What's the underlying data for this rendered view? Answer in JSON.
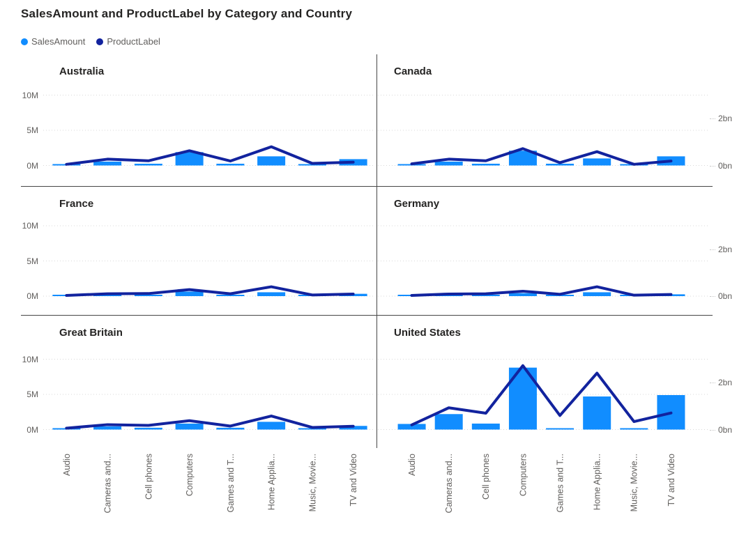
{
  "title": "SalesAmount and ProductLabel by Category and Country",
  "legend": [
    {
      "label": "SalesAmount",
      "color": "#118DFF"
    },
    {
      "label": "ProductLabel",
      "color": "#12239E"
    }
  ],
  "colors": {
    "bar": "#118DFF",
    "line": "#12239E",
    "text_dark": "#252423",
    "text_gray": "#605E5C",
    "gridline": "#d8d8d8",
    "divider": "#464646"
  },
  "chart_data": {
    "type": "bar",
    "subtype": "small-multiples combo: column (SalesAmount, left axis M) + line (ProductLabel, right axis bn)",
    "title": "SalesAmount and ProductLabel by Category and Country",
    "categories": [
      "Audio",
      "Cameras and...",
      "Cell phones",
      "Computers",
      "Games and T...",
      "Home Applia...",
      "Music, Movie...",
      "TV and Video"
    ],
    "small_multiples": [
      "Australia",
      "Canada",
      "France",
      "Germany",
      "Great Britain",
      "United States"
    ],
    "left_axis": {
      "ticks": [
        "0M",
        "5M",
        "10M"
      ],
      "unit": "M",
      "range": [
        0,
        10
      ]
    },
    "right_axis": {
      "ticks": [
        "0bn",
        "2bn"
      ],
      "unit": "bn",
      "range": [
        0,
        2
      ]
    },
    "grid": "dotted horizontal gridlines at 0M, 5M, 10M",
    "legend_position": "top-left",
    "series_meta": [
      {
        "name": "SalesAmount",
        "mark": "bar",
        "color": "#118DFF",
        "axis": "left"
      },
      {
        "name": "ProductLabel",
        "mark": "line",
        "color": "#12239E",
        "axis": "right"
      }
    ],
    "panels": [
      {
        "country": "Australia",
        "sales_amount_M": [
          0.2,
          0.55,
          0.25,
          1.9,
          0.25,
          1.3,
          0.2,
          0.9
        ],
        "product_label_bn": [
          0.05,
          0.27,
          0.2,
          0.63,
          0.19,
          0.8,
          0.09,
          0.14
        ]
      },
      {
        "country": "Canada",
        "sales_amount_M": [
          0.2,
          0.55,
          0.25,
          2.1,
          0.25,
          1.0,
          0.2,
          1.3
        ],
        "product_label_bn": [
          0.07,
          0.27,
          0.2,
          0.72,
          0.12,
          0.59,
          0.05,
          0.19
        ]
      },
      {
        "country": "France",
        "sales_amount_M": [
          0.15,
          0.3,
          0.2,
          0.65,
          0.17,
          0.55,
          0.13,
          0.33
        ],
        "product_label_bn": [
          0.03,
          0.1,
          0.11,
          0.28,
          0.1,
          0.4,
          0.05,
          0.09
        ]
      },
      {
        "country": "Germany",
        "sales_amount_M": [
          0.1,
          0.25,
          0.17,
          0.42,
          0.16,
          0.55,
          0.13,
          0.26
        ],
        "product_label_bn": [
          0.03,
          0.09,
          0.1,
          0.21,
          0.08,
          0.4,
          0.04,
          0.07
        ]
      },
      {
        "country": "Great Britain",
        "sales_amount_M": [
          0.2,
          0.45,
          0.26,
          0.85,
          0.26,
          1.1,
          0.2,
          0.52
        ],
        "product_label_bn": [
          0.06,
          0.21,
          0.18,
          0.38,
          0.15,
          0.58,
          0.09,
          0.14
        ]
      },
      {
        "country": "United States",
        "sales_amount_M": [
          0.8,
          2.2,
          0.85,
          8.8,
          0.1,
          4.7,
          0.1,
          4.9
        ],
        "product_label_bn": [
          0.2,
          0.93,
          0.7,
          2.73,
          0.6,
          2.41,
          0.34,
          0.71
        ]
      }
    ]
  }
}
